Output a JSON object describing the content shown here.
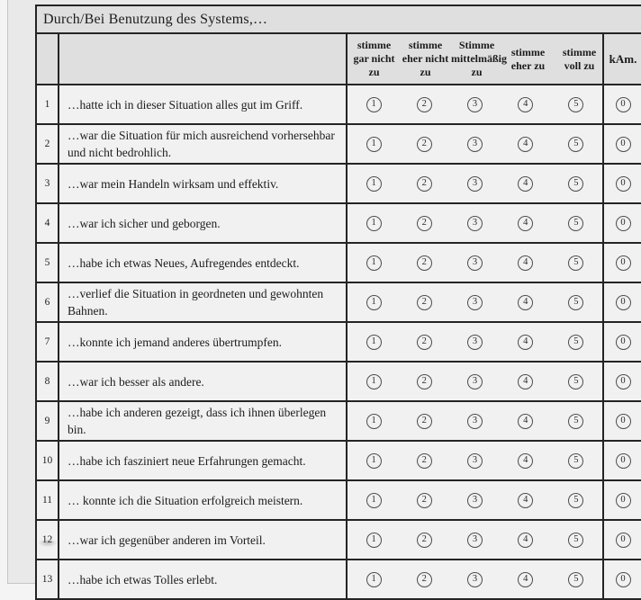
{
  "title": "Durch/Bei Benutzung des Systems,…",
  "scale": {
    "headers": [
      "stimme gar nicht zu",
      "stimme eher nicht zu",
      "Stimme mittelmäßig zu",
      "stimme eher zu",
      "stimme voll zu"
    ],
    "kam_header": "kAm.",
    "options": [
      "1",
      "2",
      "3",
      "4",
      "5"
    ],
    "kam_option": "0"
  },
  "rows": [
    {
      "number": "1",
      "text": "…hatte ich in dieser Situation alles gut im Griff."
    },
    {
      "number": "2",
      "text": "…war die Situation für mich ausreichend vorhersehbar und nicht bedrohlich."
    },
    {
      "number": "3",
      "text": "…war mein Handeln wirksam und effektiv."
    },
    {
      "number": "4",
      "text": "…war ich sicher und geborgen."
    },
    {
      "number": "5",
      "text": "…habe ich etwas Neues, Aufregendes entdeckt."
    },
    {
      "number": "6",
      "text": "…verlief die Situation in geordneten und gewohnten Bahnen."
    },
    {
      "number": "7",
      "text": "…konnte ich jemand anderes übertrumpfen."
    },
    {
      "number": "8",
      "text": "…war ich besser als andere."
    },
    {
      "number": "9",
      "text": "…habe ich anderen gezeigt, dass ich ihnen überlegen bin."
    },
    {
      "number": "10",
      "text": "…habe ich fasziniert neue Erfahrungen gemacht."
    },
    {
      "number": "11",
      "text": "… konnte ich die Situation erfolgreich meistern."
    },
    {
      "number": "12",
      "text": "…war ich gegenüber anderen im Vorteil."
    },
    {
      "number": "13",
      "text": "…habe ich etwas Tolles erlebt."
    }
  ]
}
